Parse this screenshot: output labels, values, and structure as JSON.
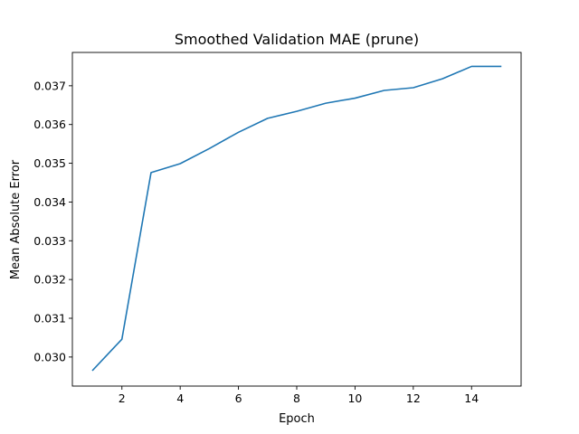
{
  "chart_data": {
    "type": "line",
    "title": "Smoothed Validation MAE (prune)",
    "xlabel": "Epoch",
    "ylabel": "Mean Absolute Error",
    "xlim": [
      0.3,
      15.7
    ],
    "ylim": [
      0.02925,
      0.03786
    ],
    "xticks": [
      2,
      4,
      6,
      8,
      10,
      12,
      14
    ],
    "xtick_labels": [
      "2",
      "4",
      "6",
      "8",
      "10",
      "12",
      "14"
    ],
    "yticks": [
      0.03,
      0.031,
      0.032,
      0.033,
      0.034,
      0.035,
      0.036,
      0.037
    ],
    "ytick_labels": [
      "0.030",
      "0.031",
      "0.032",
      "0.033",
      "0.034",
      "0.035",
      "0.036",
      "0.037"
    ],
    "grid": false,
    "line_color": "#1f77b4",
    "series": [
      {
        "x": [
          1,
          2,
          3,
          4,
          5,
          6,
          7,
          8,
          9,
          10,
          11,
          12,
          13,
          14,
          15
        ],
        "values": [
          0.02966,
          0.03046,
          0.03476,
          0.03499,
          0.03538,
          0.0358,
          0.03616,
          0.03634,
          0.03655,
          0.03668,
          0.03688,
          0.03695,
          0.03718,
          0.0375,
          0.0375
        ]
      }
    ]
  }
}
